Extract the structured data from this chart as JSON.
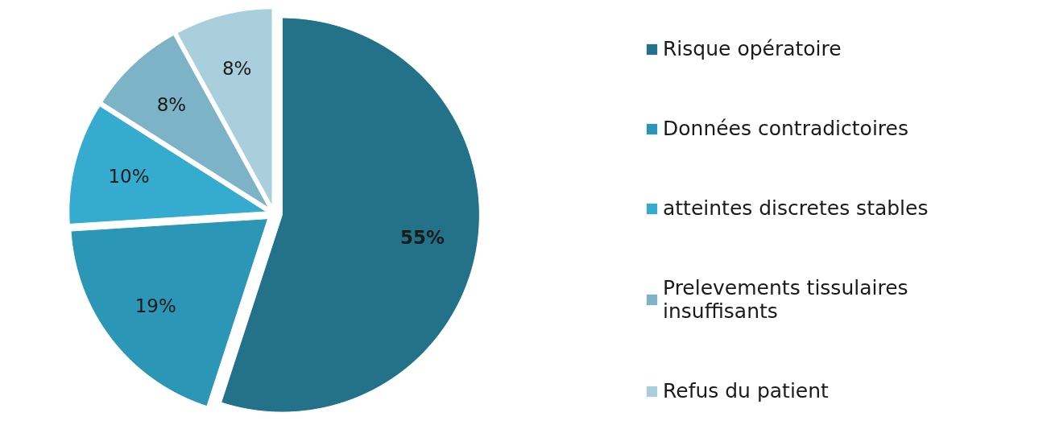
{
  "chart_data": {
    "type": "pie",
    "categories": [
      "Risque opératoire",
      "Données contradictoires",
      "atteintes discretes stables",
      "Prelevements tissulaires insuffisants",
      "Refus du patient"
    ],
    "values": [
      55,
      19,
      10,
      8,
      8
    ],
    "value_labels": [
      "55%",
      "19%",
      "10%",
      "8%",
      "8%"
    ],
    "colors": [
      "#23728a",
      "#2b96b5",
      "#35abcf",
      "#7db3c7",
      "#a9cfdd"
    ],
    "legend": "right"
  }
}
